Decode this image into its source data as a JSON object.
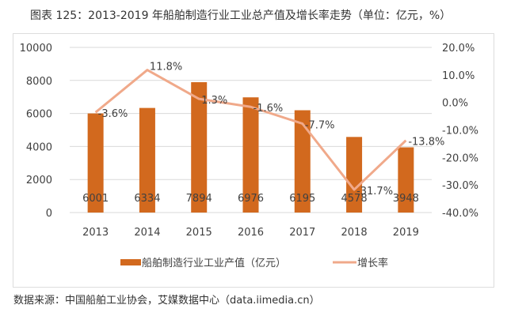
{
  "title": "图表 125：2013-2019 年船舶制造行业工业总产值及增长率走势（单位：亿元，%）",
  "source": "数据来源：中国船舶工业协会，艾媒数据中心（data.iimedia.cn）",
  "colors": {
    "bar": "#D2691E",
    "line": "#F0A98A",
    "grid": "#d9d9d9",
    "text": "#404040"
  },
  "chart_data": {
    "type": "bar+line",
    "categories": [
      "2013",
      "2014",
      "2015",
      "2016",
      "2017",
      "2018",
      "2019"
    ],
    "series": [
      {
        "name": "船舶制造行业工业产值（亿元）",
        "type": "bar",
        "axis": "left",
        "values": [
          6001,
          6334,
          7894,
          6976,
          6195,
          4578,
          3948
        ],
        "labels": [
          "6001",
          "6334",
          "7894",
          "6976",
          "6195",
          "4578",
          "3948"
        ]
      },
      {
        "name": "增长率",
        "type": "line",
        "axis": "right",
        "values": [
          -3.6,
          11.8,
          1.3,
          -1.6,
          -7.7,
          -31.7,
          -13.8
        ],
        "labels": [
          "-3.6%",
          "11.8%",
          "1.3%",
          "-1.6%",
          "-7.7%",
          "-31.7%",
          "-13.8%"
        ]
      }
    ],
    "y_left": {
      "range": [
        0,
        10000
      ],
      "ticks": [
        "0",
        "2000",
        "4000",
        "6000",
        "8000",
        "10000"
      ]
    },
    "y_right": {
      "range": [
        -40,
        20
      ],
      "ticks": [
        "-40.0%",
        "-30.0%",
        "-20.0%",
        "-10.0%",
        "0.0%",
        "10.0%",
        "20.0%"
      ]
    },
    "grid": true,
    "legend": "bottom"
  }
}
